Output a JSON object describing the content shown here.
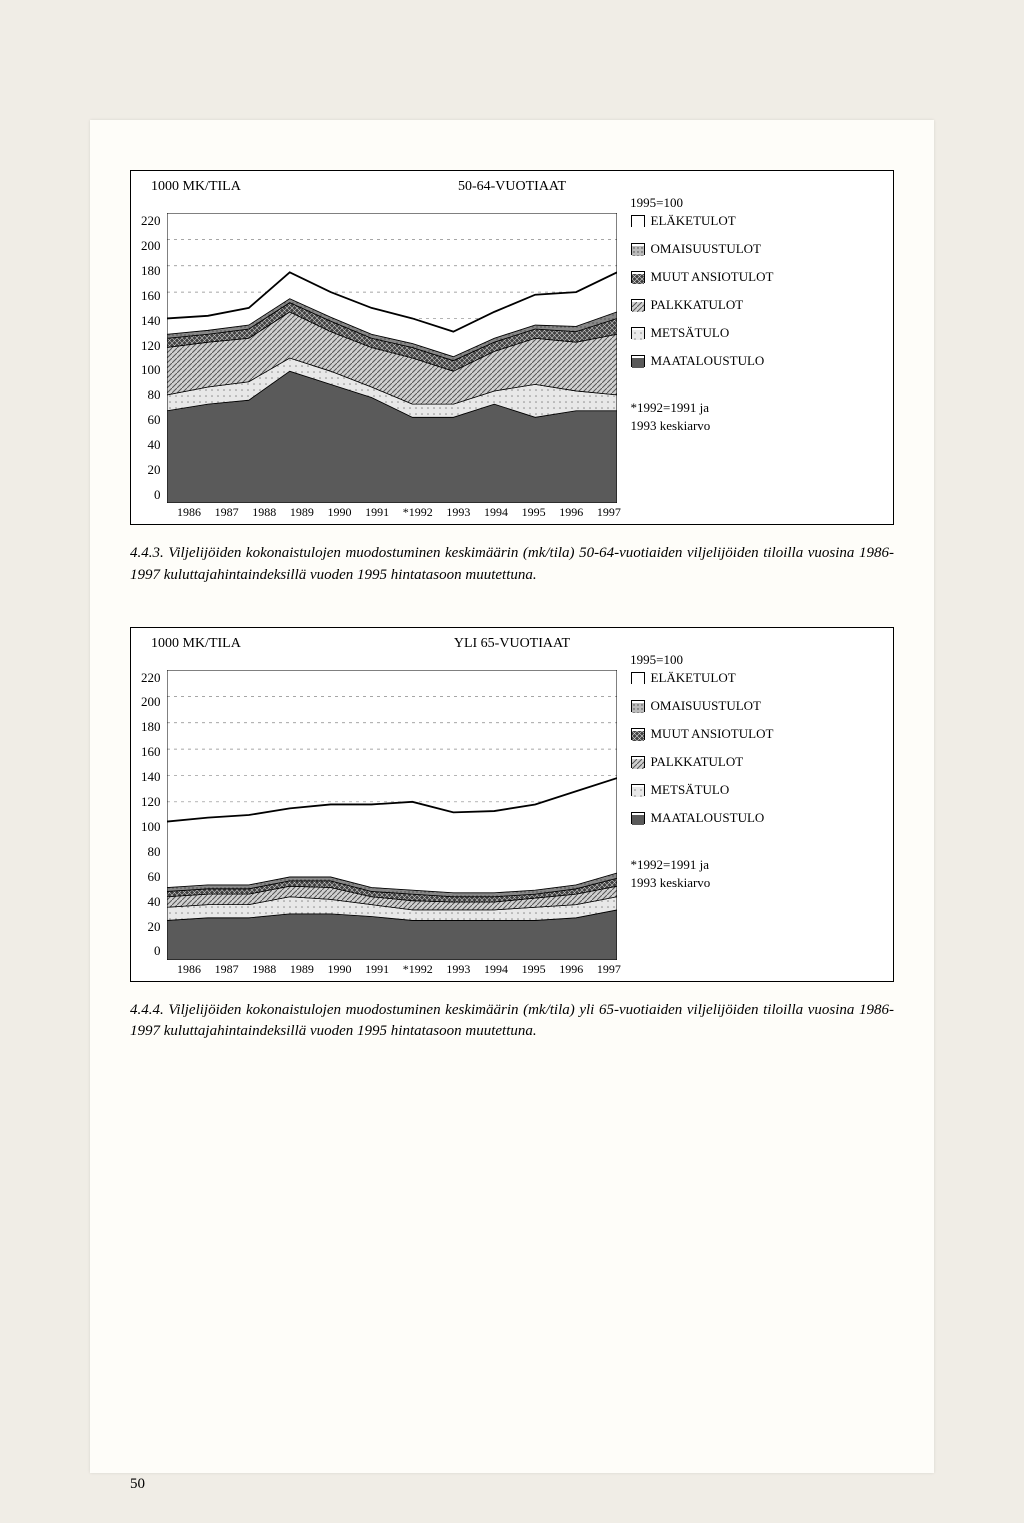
{
  "page_number": "50",
  "charts": [
    {
      "unit": "1000 MK/TILA",
      "title": "50-64-VUOTIAAT",
      "index": "1995=100",
      "y_max": 220,
      "y_step": 20,
      "years": [
        "1986",
        "1987",
        "1988",
        "1989",
        "1990",
        "1991",
        "*1992",
        "1993",
        "1994",
        "1995",
        "1996",
        "1997"
      ],
      "series": [
        {
          "name": "MAATALOUSTULO",
          "color": "#5a5a5a",
          "pattern": "solid",
          "values": [
            70,
            75,
            78,
            100,
            90,
            80,
            65,
            65,
            75,
            65,
            70,
            70
          ]
        },
        {
          "name": "METSÄTULO",
          "color": "#d8d8d8",
          "pattern": "light",
          "values": [
            82,
            88,
            92,
            110,
            100,
            88,
            75,
            75,
            85,
            90,
            85,
            82
          ]
        },
        {
          "name": "PALKKATULOT",
          "color": "#a0a0a0",
          "pattern": "hatch",
          "values": [
            118,
            122,
            125,
            145,
            130,
            118,
            110,
            100,
            115,
            125,
            122,
            128
          ]
        },
        {
          "name": "MUUT ANSIOTULOT",
          "color": "#3a3a3a",
          "pattern": "crosshatch",
          "values": [
            125,
            128,
            132,
            152,
            138,
            125,
            118,
            108,
            122,
            132,
            130,
            140
          ]
        },
        {
          "name": "OMAISUUSTULOT",
          "color": "#888888",
          "pattern": "dark",
          "values": [
            128,
            131,
            135,
            155,
            141,
            128,
            121,
            111,
            125,
            135,
            134,
            145
          ]
        },
        {
          "name": "ELÄKETULOT",
          "color": "#ffffff",
          "pattern": "none",
          "values": [
            140,
            142,
            148,
            175,
            160,
            148,
            140,
            130,
            145,
            158,
            160,
            175
          ]
        }
      ],
      "footnote1": "*1992=1991 ja",
      "footnote2": "1993 keskiarvo",
      "legend": [
        {
          "label": "ELÄKETULOT",
          "fill": "#ffffff",
          "pattern": "none"
        },
        {
          "label": "OMAISUUSTULOT",
          "fill": "#999999",
          "pattern": "dots"
        },
        {
          "label": "MUUT ANSIOTULOT",
          "fill": "#404040",
          "pattern": "cross"
        },
        {
          "label": "PALKKATULOT",
          "fill": "#aaaaaa",
          "pattern": "hatch"
        },
        {
          "label": "METSÄTULO",
          "fill": "#d8d8d8",
          "pattern": "light"
        },
        {
          "label": "MAATALOUSTULO",
          "fill": "#5a5a5a",
          "pattern": "solid"
        }
      ]
    },
    {
      "unit": "1000 MK/TILA",
      "title": "YLI 65-VUOTIAAT",
      "index": "1995=100",
      "y_max": 220,
      "y_step": 20,
      "years": [
        "1986",
        "1987",
        "1988",
        "1989",
        "1990",
        "1991",
        "*1992",
        "1993",
        "1994",
        "1995",
        "1996",
        "1997"
      ],
      "series": [
        {
          "name": "MAATALOUSTULO",
          "color": "#5a5a5a",
          "pattern": "solid",
          "values": [
            30,
            32,
            32,
            35,
            35,
            33,
            30,
            30,
            30,
            30,
            32,
            38
          ]
        },
        {
          "name": "METSÄTULO",
          "color": "#d8d8d8",
          "pattern": "light",
          "values": [
            40,
            42,
            42,
            48,
            46,
            42,
            38,
            38,
            38,
            40,
            42,
            48
          ]
        },
        {
          "name": "PALKKATULOT",
          "color": "#a0a0a0",
          "pattern": "hatch",
          "values": [
            48,
            50,
            50,
            56,
            55,
            48,
            45,
            44,
            44,
            47,
            50,
            56
          ]
        },
        {
          "name": "MUUT ANSIOTULOT",
          "color": "#3a3a3a",
          "pattern": "crosshatch",
          "values": [
            52,
            54,
            54,
            60,
            60,
            52,
            50,
            48,
            48,
            50,
            54,
            62
          ]
        },
        {
          "name": "OMAISUUSTULOT",
          "color": "#888888",
          "pattern": "dark",
          "values": [
            55,
            57,
            57,
            63,
            63,
            55,
            53,
            51,
            51,
            53,
            57,
            66
          ]
        },
        {
          "name": "ELÄKETULOT",
          "color": "#ffffff",
          "pattern": "none",
          "values": [
            105,
            108,
            110,
            115,
            118,
            118,
            120,
            112,
            113,
            118,
            128,
            138
          ]
        }
      ],
      "footnote1": "*1992=1991 ja",
      "footnote2": "1993 keskiarvo",
      "legend": [
        {
          "label": "ELÄKETULOT",
          "fill": "#ffffff",
          "pattern": "none"
        },
        {
          "label": "OMAISUUSTULOT",
          "fill": "#999999",
          "pattern": "dots"
        },
        {
          "label": "MUUT ANSIOTULOT",
          "fill": "#404040",
          "pattern": "cross"
        },
        {
          "label": "PALKKATULOT",
          "fill": "#aaaaaa",
          "pattern": "hatch"
        },
        {
          "label": "METSÄTULO",
          "fill": "#d8d8d8",
          "pattern": "light"
        },
        {
          "label": "MAATALOUSTULO",
          "fill": "#5a5a5a",
          "pattern": "solid"
        }
      ]
    }
  ],
  "captions": [
    "4.4.3. Viljelijöiden kokonaistulojen muodostuminen keskimäärin (mk/tila) 50-64-vuotiaiden viljelijöiden tiloilla vuosina 1986-1997 kuluttajahintaindeksillä vuoden 1995 hintatasoon muutettuna.",
    "4.4.4. Viljelijöiden kokonaistulojen muodostuminen keskimäärin (mk/tila) yli 65-vuotiaiden viljelijöiden tiloilla vuosina 1986-1997 kuluttajahintaindeksillä vuoden 1995 hintatasoon muutettuna."
  ],
  "styling": {
    "page_bg": "#f0ede6",
    "paper_bg": "#fefdf9",
    "border_color": "#000000",
    "grid_dash": "2,4",
    "grid_color": "#666666"
  }
}
